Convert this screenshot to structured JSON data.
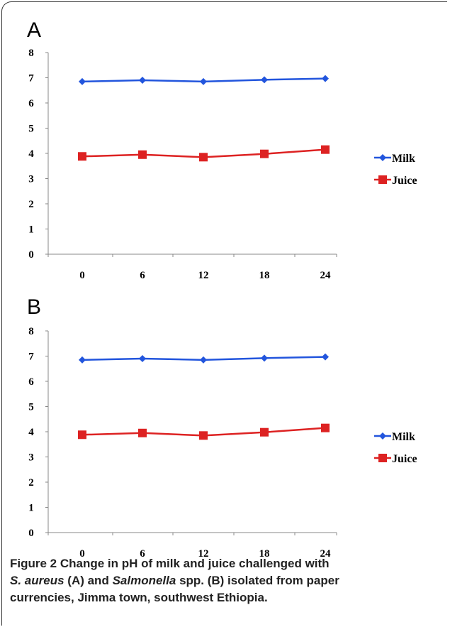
{
  "panels": [
    {
      "label": "A",
      "chart_data": {
        "type": "line",
        "categories": [
          "0",
          "6",
          "12",
          "18",
          "24"
        ],
        "series": [
          {
            "name": "Milk",
            "color": "#2255dd",
            "marker": "diamond",
            "values": [
              6.85,
              6.9,
              6.85,
              6.92,
              6.97
            ]
          },
          {
            "name": "Juice",
            "color": "#dd2222",
            "marker": "square",
            "values": [
              3.88,
              3.95,
              3.85,
              3.98,
              4.15
            ]
          }
        ],
        "ylim": [
          0,
          8
        ],
        "yticks": [
          "0",
          "1",
          "2",
          "3",
          "4",
          "5",
          "6",
          "7",
          "8"
        ],
        "legend": "right"
      }
    },
    {
      "label": "B",
      "chart_data": {
        "type": "line",
        "categories": [
          "0",
          "6",
          "12",
          "18",
          "24"
        ],
        "series": [
          {
            "name": "Milk",
            "color": "#2255dd",
            "marker": "diamond",
            "values": [
              6.85,
              6.9,
              6.85,
              6.92,
              6.97
            ]
          },
          {
            "name": "Juice",
            "color": "#dd2222",
            "marker": "square",
            "values": [
              3.88,
              3.95,
              3.85,
              3.98,
              4.15
            ]
          }
        ],
        "ylim": [
          0,
          8
        ],
        "yticks": [
          "0",
          "1",
          "2",
          "3",
          "4",
          "5",
          "6",
          "7",
          "8"
        ],
        "legend": "right"
      }
    }
  ],
  "caption": {
    "figure_label": "Figure 2",
    "line1": "Change in pH of milk and juice challenged with",
    "species1": "S. aureus",
    "line2a": "(A) and",
    "species2": "Salmonella",
    "line2b": "spp. (B) isolated from paper",
    "line3": "currencies, Jimma town, southwest Ethiopia."
  }
}
